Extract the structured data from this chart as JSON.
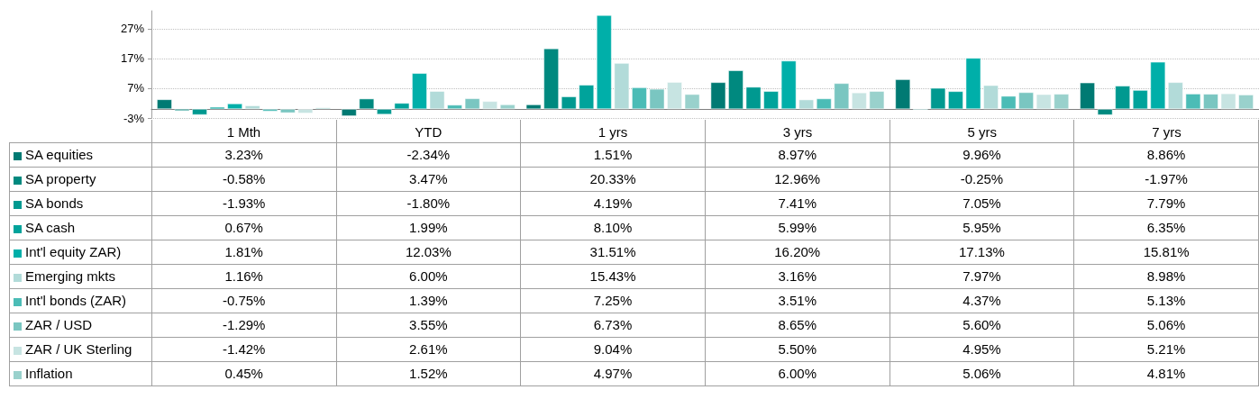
{
  "chart_data": {
    "type": "bar",
    "categories": [
      "1 Mth",
      "YTD",
      "1 yrs",
      "3 yrs",
      "5 yrs",
      "7 yrs"
    ],
    "series": [
      {
        "name": "SA equities",
        "color": "#007a73",
        "values": [
          3.23,
          -2.34,
          1.51,
          8.97,
          9.96,
          8.86
        ],
        "value_labels": [
          "3.23%",
          "-2.34%",
          "1.51%",
          "8.97%",
          "9.96%",
          "8.86%"
        ]
      },
      {
        "name": "SA property",
        "color": "#00897f",
        "values": [
          -0.58,
          3.47,
          20.33,
          12.96,
          -0.25,
          -1.97
        ],
        "value_labels": [
          "-0.58%",
          "3.47%",
          "20.33%",
          "12.96%",
          "-0.25%",
          "-1.97%"
        ]
      },
      {
        "name": "SA bonds",
        "color": "#009990",
        "values": [
          -1.93,
          -1.8,
          4.19,
          7.41,
          7.05,
          7.79
        ],
        "value_labels": [
          "-1.93%",
          "-1.80%",
          "4.19%",
          "7.41%",
          "7.05%",
          "7.79%"
        ]
      },
      {
        "name": "SA cash",
        "color": "#00a39b",
        "values": [
          0.67,
          1.99,
          8.1,
          5.99,
          5.95,
          6.35
        ],
        "value_labels": [
          "0.67%",
          "1.99%",
          "8.10%",
          "5.99%",
          "5.95%",
          "6.35%"
        ]
      },
      {
        "name": "Int'l equity ZAR)",
        "color": "#00afa9",
        "values": [
          1.81,
          12.03,
          31.51,
          16.2,
          17.13,
          15.81
        ],
        "value_labels": [
          "1.81%",
          "12.03%",
          "31.51%",
          "16.20%",
          "17.13%",
          "15.81%"
        ]
      },
      {
        "name": "Emerging mkts",
        "color": "#b2dbd9",
        "values": [
          1.16,
          6.0,
          15.43,
          3.16,
          7.97,
          8.98
        ],
        "value_labels": [
          "1.16%",
          "6.00%",
          "15.43%",
          "3.16%",
          "7.97%",
          "8.98%"
        ]
      },
      {
        "name": "Int'l bonds (ZAR)",
        "color": "#4bbcb6",
        "values": [
          -0.75,
          1.39,
          7.25,
          3.51,
          4.37,
          5.13
        ],
        "value_labels": [
          "-0.75%",
          "1.39%",
          "7.25%",
          "3.51%",
          "4.37%",
          "5.13%"
        ]
      },
      {
        "name": "ZAR / USD",
        "color": "#7ac6c1",
        "values": [
          -1.29,
          3.55,
          6.73,
          8.65,
          5.6,
          5.06
        ],
        "value_labels": [
          "-1.29%",
          "3.55%",
          "6.73%",
          "8.65%",
          "5.60%",
          "5.06%"
        ]
      },
      {
        "name": "ZAR / UK Sterling",
        "color": "#c7e4e2",
        "values": [
          -1.42,
          2.61,
          9.04,
          5.5,
          4.95,
          5.21
        ],
        "value_labels": [
          "-1.42%",
          "2.61%",
          "9.04%",
          "5.50%",
          "4.95%",
          "5.21%"
        ]
      },
      {
        "name": "Inflation",
        "color": "#99d1cc",
        "values": [
          0.45,
          1.52,
          4.97,
          6.0,
          5.06,
          4.81
        ],
        "value_labels": [
          "0.45%",
          "1.52%",
          "4.97%",
          "6.00%",
          "5.06%",
          "4.81%"
        ]
      }
    ],
    "ylim": [
      -3,
      33
    ],
    "yticks": [
      {
        "value": -3,
        "label": "-3%"
      },
      {
        "value": 7,
        "label": "7%"
      },
      {
        "value": 17,
        "label": "17%"
      },
      {
        "value": 27,
        "label": "27%"
      }
    ],
    "grid": "y",
    "legend": "bottom left"
  }
}
